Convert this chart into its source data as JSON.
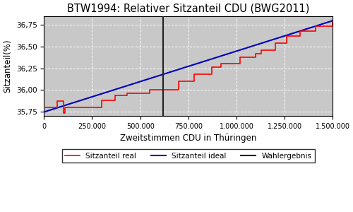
{
  "title": "BTW1994: Relativer Sitzanteil CDU (BWG2011)",
  "xlabel": "Zweitstimmen CDU in Thüringen",
  "ylabel": "Sitzanteil(%)",
  "xlim": [
    0,
    1500000
  ],
  "ylim": [
    35.7,
    36.85
  ],
  "yticks": [
    35.75,
    36.0,
    36.25,
    36.5,
    36.75
  ],
  "xticks": [
    0,
    250000,
    500000,
    750000,
    1000000,
    1250000,
    1500000
  ],
  "vline_x": 620000,
  "color_real": "#ff0000",
  "color_ideal": "#0000bb",
  "color_wahlergebnis": "#222222",
  "legend_labels": [
    "Sitzanteil real",
    "Sitzanteil ideal",
    "Wahlergebnis"
  ],
  "bg_color": "#c8c8c8",
  "ideal_start": 35.745,
  "ideal_end": 36.8,
  "real_steps_x": [
    0,
    70000,
    100000,
    110000,
    200000,
    300000,
    370000,
    430000,
    500000,
    550000,
    620000,
    700000,
    750000,
    780000,
    830000,
    870000,
    920000,
    970000,
    1020000,
    1060000,
    1100000,
    1130000,
    1160000,
    1200000,
    1230000,
    1260000,
    1290000,
    1330000,
    1370000,
    1410000,
    1460000,
    1500000
  ],
  "real_steps_y": [
    35.8,
    35.87,
    35.73,
    35.8,
    35.8,
    35.88,
    35.94,
    35.96,
    35.96,
    36.0,
    36.0,
    36.1,
    36.1,
    36.18,
    36.18,
    36.26,
    36.3,
    36.3,
    36.38,
    36.38,
    36.42,
    36.46,
    36.46,
    36.54,
    36.54,
    36.62,
    36.62,
    36.68,
    36.68,
    36.74,
    36.74,
    36.78
  ]
}
